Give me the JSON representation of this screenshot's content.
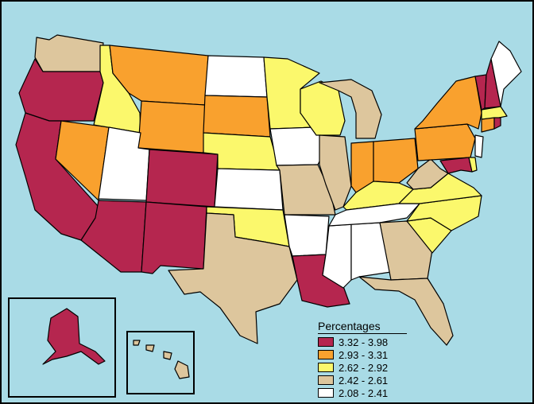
{
  "legend": {
    "title": "Percentages",
    "classes": [
      {
        "label": "3.32 - 3.98",
        "color": "#b5264f"
      },
      {
        "label": "2.93 - 3.31",
        "color": "#f9a12e"
      },
      {
        "label": "2.62 - 2.92",
        "color": "#fbf86c"
      },
      {
        "label": "2.42 - 2.61",
        "color": "#ddc69d"
      },
      {
        "label": "2.08 - 2.41",
        "color": "#ffffff"
      }
    ]
  },
  "colors": {
    "water": "#a9dbe6",
    "border": "#000000"
  }
}
